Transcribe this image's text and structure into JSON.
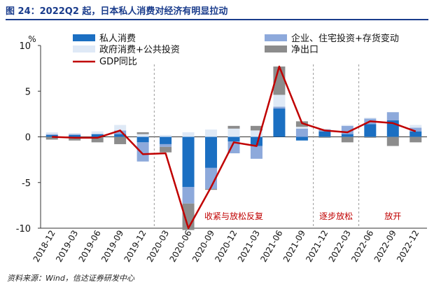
{
  "figure": {
    "title": "图 24：2022Q2 起，日本私人消费对经济有明显拉动",
    "source": "资料来源：Wind，信达证券研发中心"
  },
  "chart_data": {
    "type": "bar",
    "stacked": true,
    "categories": [
      "2018-12",
      "2019-03",
      "2019-06",
      "2019-09",
      "2019-12",
      "2020-03",
      "2020-06",
      "2020-09",
      "2020-12",
      "2021-03",
      "2021-06",
      "2021-09",
      "2021-12",
      "2022-03",
      "2022-06",
      "2022-09",
      "2022-12"
    ],
    "ylim": [
      -10,
      10
    ],
    "yticks": [
      -10,
      -5,
      0,
      5,
      10
    ],
    "yunit": "%",
    "series": [
      {
        "name": "私人消费",
        "color": "#1b6fc2",
        "kind": "bar",
        "values": [
          0.2,
          0.2,
          0.3,
          0.3,
          -0.6,
          -0.8,
          -5.5,
          -3.4,
          -0.5,
          -1.0,
          3.1,
          -0.4,
          0.6,
          0.3,
          1.4,
          1.8,
          0.6
        ]
      },
      {
        "name": "企业、住宅投资+存货变动",
        "color": "#8da9db",
        "kind": "bar",
        "values": [
          0.1,
          0.1,
          0.0,
          0.4,
          -2.1,
          -0.3,
          -1.8,
          -2.3,
          -1.3,
          -1.4,
          0.2,
          0.9,
          0.2,
          0.9,
          0.6,
          0.9,
          0.4
        ]
      },
      {
        "name": "政府消费+公共投资",
        "color": "#dfe9f6",
        "kind": "bar",
        "values": [
          0.2,
          0.1,
          0.3,
          0.6,
          0.3,
          0.2,
          0.5,
          0.8,
          0.9,
          0.7,
          1.3,
          0.2,
          0.1,
          0.1,
          0.1,
          0.0,
          0.3
        ]
      },
      {
        "name": "净出口",
        "color": "#8c8c8c",
        "kind": "bar",
        "values": [
          -0.3,
          -0.4,
          -0.6,
          -0.8,
          0.2,
          -0.6,
          -2.9,
          -0.1,
          0.3,
          0.5,
          3.1,
          0.6,
          -0.1,
          -0.6,
          -0.1,
          -1.0,
          -0.6
        ]
      },
      {
        "name": "GDP同比",
        "color": "#c00000",
        "kind": "line",
        "values": [
          0.0,
          -0.1,
          -0.1,
          0.7,
          -1.9,
          -1.8,
          -10.0,
          -5.5,
          -0.6,
          -1.0,
          7.7,
          1.5,
          0.7,
          0.5,
          1.7,
          1.5,
          0.6
        ]
      }
    ],
    "legend": "top, two columns",
    "grid": false,
    "phase_dividers_after": [
      "2019-12",
      "2021-09",
      "2022-03"
    ],
    "annotations": [
      {
        "text": "收紧与放松反复",
        "from": "2020-03",
        "to": "2021-09"
      },
      {
        "text": "逐步放松",
        "from": "2021-12",
        "to": "2022-03"
      },
      {
        "text": "放开",
        "from": "2022-06",
        "to": "2022-12"
      }
    ]
  }
}
